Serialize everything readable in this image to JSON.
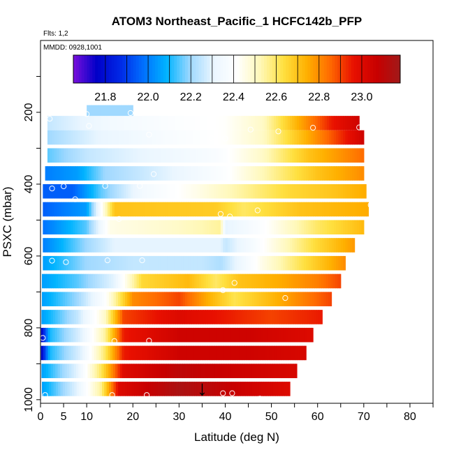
{
  "chart_data": {
    "type": "heatmap",
    "title": "ATOM3 Northeast_Pacific_1 HCFC142b_PFP",
    "notes": [
      "Flts: 1,2",
      "MMDD: 0928,1001"
    ],
    "xlabel": "Latitude (deg N)",
    "ylabel": "PSXC (mbar)",
    "xlim": [
      0,
      85
    ],
    "ylim": [
      1010,
      0
    ],
    "x_ticks": [
      0,
      5,
      10,
      20,
      30,
      40,
      50,
      60,
      70,
      80
    ],
    "y_ticks": [
      200,
      400,
      600,
      800,
      1000
    ],
    "grid": false,
    "colorbar": {
      "placement": "top",
      "range": [
        21.65,
        23.18
      ],
      "tick_values": [
        21.8,
        22.0,
        22.2,
        22.4,
        22.6,
        22.8,
        23.0
      ],
      "tick_labels": [
        "21.8",
        "22.0",
        "22.2",
        "22.4",
        "22.6",
        "22.8",
        "23.0"
      ],
      "colors": [
        "#7a10dc",
        "#0000c8",
        "#0028e6",
        "#0070ff",
        "#00b4ff",
        "#9ed8ff",
        "#eaf6ff",
        "#ffffff",
        "#fff8b8",
        "#ffe040",
        "#ffb000",
        "#ff6a00",
        "#e81000",
        "#c80000",
        "#a01a1a"
      ]
    },
    "bands": [
      {
        "p": 200,
        "x0": 10,
        "x1": 20,
        "profile": [
          [
            10,
            22.2
          ],
          [
            20,
            22.2
          ]
        ]
      },
      {
        "p": 230,
        "x0": 1.5,
        "x1": 69,
        "profile": [
          [
            1.5,
            22.25
          ],
          [
            15,
            22.35
          ],
          [
            30,
            22.4
          ],
          [
            40,
            22.42
          ],
          [
            48,
            22.5
          ],
          [
            56,
            22.75
          ],
          [
            63,
            22.95
          ],
          [
            69,
            23.05
          ]
        ]
      },
      {
        "p": 270,
        "x0": 1.5,
        "x1": 70,
        "profile": [
          [
            1.5,
            22.2
          ],
          [
            12,
            22.3
          ],
          [
            28,
            22.38
          ],
          [
            40,
            22.42
          ],
          [
            48,
            22.5
          ],
          [
            56,
            22.7
          ],
          [
            64,
            22.9
          ],
          [
            70,
            23.05
          ]
        ]
      },
      {
        "p": 320,
        "x0": 1.5,
        "x1": 70,
        "profile": [
          [
            1.5,
            22.15
          ],
          [
            10,
            22.25
          ],
          [
            25,
            22.32
          ],
          [
            38,
            22.38
          ],
          [
            48,
            22.5
          ],
          [
            58,
            22.7
          ],
          [
            70,
            22.85
          ]
        ]
      },
      {
        "p": 370,
        "x0": 1,
        "x1": 70,
        "profile": [
          [
            1,
            22.0
          ],
          [
            8,
            22.05
          ],
          [
            14,
            22.2
          ],
          [
            28,
            22.3
          ],
          [
            40,
            22.4
          ],
          [
            50,
            22.55
          ],
          [
            60,
            22.7
          ],
          [
            70,
            22.8
          ]
        ]
      },
      {
        "p": 420,
        "x0": 0.5,
        "x1": 70.5,
        "profile": [
          [
            0.5,
            21.95
          ],
          [
            7,
            21.95
          ],
          [
            13,
            22.15
          ],
          [
            22,
            22.35
          ],
          [
            34,
            22.45
          ],
          [
            44,
            22.55
          ],
          [
            54,
            22.65
          ],
          [
            64,
            22.7
          ],
          [
            70.5,
            22.75
          ]
        ]
      },
      {
        "p": 470,
        "x0": 0.5,
        "x1": 71,
        "profile": [
          [
            0.5,
            21.95
          ],
          [
            10,
            22.05
          ],
          [
            14,
            22.5
          ],
          [
            16,
            22.7
          ],
          [
            38,
            22.68
          ],
          [
            44,
            22.6
          ],
          [
            56,
            22.7
          ],
          [
            71,
            22.75
          ]
        ]
      },
      {
        "p": 520,
        "x0": 0.5,
        "x1": 70,
        "profile": [
          [
            0.5,
            21.98
          ],
          [
            10,
            22.15
          ],
          [
            15,
            22.45
          ],
          [
            30,
            22.5
          ],
          [
            39,
            22.55
          ],
          [
            40,
            22.3
          ],
          [
            48,
            22.4
          ],
          [
            60,
            22.6
          ],
          [
            70,
            22.72
          ]
        ]
      },
      {
        "p": 570,
        "x0": 0.5,
        "x1": 68,
        "profile": [
          [
            0.5,
            22.0
          ],
          [
            10,
            22.2
          ],
          [
            16,
            22.3
          ],
          [
            28,
            22.3
          ],
          [
            39,
            22.3
          ],
          [
            40,
            22.25
          ],
          [
            50,
            22.45
          ],
          [
            60,
            22.65
          ],
          [
            68,
            22.78
          ]
        ]
      },
      {
        "p": 620,
        "x0": 0.5,
        "x1": 66,
        "profile": [
          [
            0.5,
            22.05
          ],
          [
            10,
            22.2
          ],
          [
            20,
            22.25
          ],
          [
            35,
            22.25
          ],
          [
            39,
            22.22
          ],
          [
            48,
            22.45
          ],
          [
            58,
            22.65
          ],
          [
            66,
            22.8
          ]
        ]
      },
      {
        "p": 670,
        "x0": 0.3,
        "x1": 65,
        "profile": [
          [
            0.3,
            22.05
          ],
          [
            8,
            22.15
          ],
          [
            16,
            22.3
          ],
          [
            22,
            22.65
          ],
          [
            32,
            22.72
          ],
          [
            38,
            22.6
          ],
          [
            43,
            22.7
          ],
          [
            52,
            22.75
          ],
          [
            60,
            22.82
          ],
          [
            65,
            22.9
          ]
        ]
      },
      {
        "p": 720,
        "x0": 0.3,
        "x1": 63,
        "profile": [
          [
            0.3,
            22.05
          ],
          [
            8,
            22.2
          ],
          [
            14,
            22.4
          ],
          [
            20,
            22.8
          ],
          [
            30,
            22.9
          ],
          [
            36,
            22.75
          ],
          [
            42,
            22.62
          ],
          [
            52,
            22.75
          ],
          [
            63,
            22.9
          ]
        ]
      },
      {
        "p": 770,
        "x0": 0.2,
        "x1": 61,
        "profile": [
          [
            0.2,
            22.05
          ],
          [
            8,
            22.25
          ],
          [
            14,
            22.5
          ],
          [
            18,
            22.9
          ],
          [
            30,
            23.0
          ],
          [
            40,
            22.95
          ],
          [
            50,
            22.9
          ],
          [
            61,
            22.95
          ]
        ]
      },
      {
        "p": 820,
        "x0": 0.1,
        "x1": 59,
        "profile": [
          [
            0.1,
            21.75
          ],
          [
            2,
            22.1
          ],
          [
            9,
            22.3
          ],
          [
            14,
            22.55
          ],
          [
            18,
            22.95
          ],
          [
            30,
            23.05
          ],
          [
            45,
            23.05
          ],
          [
            59,
            23.0
          ]
        ]
      },
      {
        "p": 870,
        "x0": 0.1,
        "x1": 57.5,
        "profile": [
          [
            0.1,
            21.75
          ],
          [
            2,
            22.1
          ],
          [
            9,
            22.3
          ],
          [
            14,
            22.6
          ],
          [
            18,
            22.95
          ],
          [
            30,
            23.05
          ],
          [
            45,
            23.05
          ],
          [
            57.5,
            23.02
          ]
        ]
      },
      {
        "p": 920,
        "x0": 0.2,
        "x1": 55.5,
        "profile": [
          [
            0.2,
            22.05
          ],
          [
            8,
            22.3
          ],
          [
            13,
            22.6
          ],
          [
            18,
            23.0
          ],
          [
            30,
            23.1
          ],
          [
            45,
            23.05
          ],
          [
            55.5,
            23.02
          ]
        ]
      },
      {
        "p": 970,
        "x0": 0.3,
        "x1": 54,
        "profile": [
          [
            0.3,
            22.05
          ],
          [
            8,
            22.3
          ],
          [
            13,
            22.55
          ],
          [
            17,
            23.0
          ],
          [
            30,
            23.15
          ],
          [
            45,
            23.05
          ],
          [
            54,
            23.0
          ]
        ]
      }
    ],
    "points": [
      [
        2,
        218
      ],
      [
        10,
        205
      ],
      [
        10.5,
        238
      ],
      [
        19.5,
        202
      ],
      [
        23.5,
        262
      ],
      [
        37,
        272
      ],
      [
        40,
        273
      ],
      [
        45.5,
        248
      ],
      [
        51.5,
        253
      ],
      [
        59,
        243
      ],
      [
        69,
        242
      ],
      [
        24.5,
        372
      ],
      [
        2.5,
        412
      ],
      [
        5,
        406
      ],
      [
        14,
        405
      ],
      [
        21.5,
        405
      ],
      [
        7.5,
        442
      ],
      [
        39,
        483
      ],
      [
        41,
        490
      ],
      [
        17,
        497
      ],
      [
        71.5,
        458
      ],
      [
        47,
        473
      ],
      [
        2.5,
        613
      ],
      [
        5.5,
        617
      ],
      [
        14.5,
        612
      ],
      [
        22,
        612
      ],
      [
        42,
        675
      ],
      [
        39.5,
        695
      ],
      [
        53,
        717
      ],
      [
        0.5,
        828
      ],
      [
        23.5,
        836
      ],
      [
        16,
        837
      ],
      [
        1,
        987
      ],
      [
        15.5,
        987
      ],
      [
        23,
        987
      ],
      [
        39.5,
        982
      ],
      [
        41.5,
        982
      ],
      [
        47.5,
        997
      ]
    ],
    "annotations": [
      {
        "text": "↓",
        "x": 35,
        "p": 960,
        "meaning": "downward arrow marker"
      }
    ]
  }
}
